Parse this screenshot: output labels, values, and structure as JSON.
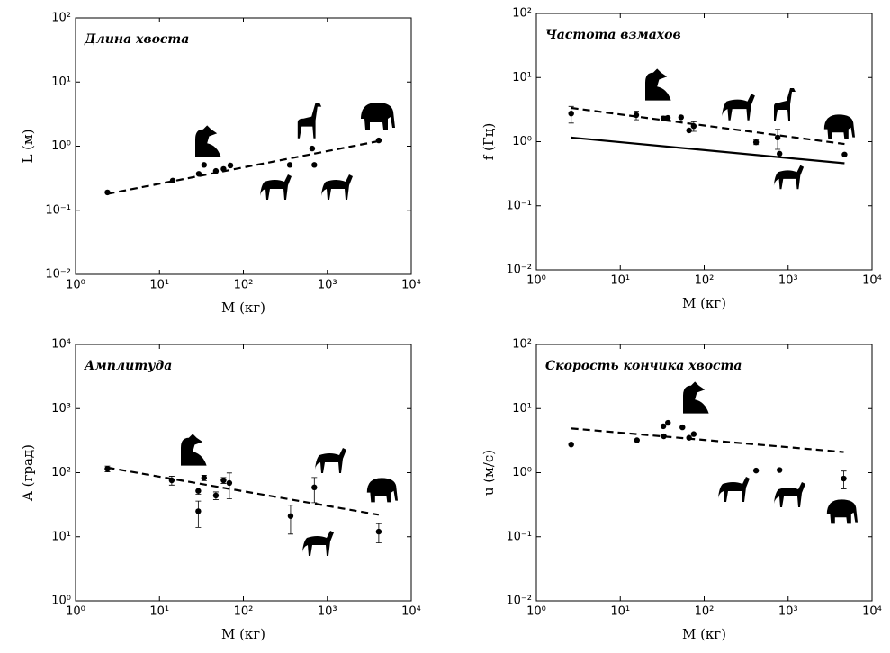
{
  "chart_data": [
    {
      "type": "scatter",
      "title": "Длина хвоста",
      "xlabel": "M (кг)",
      "ylabel": "L (м)",
      "log_x": true,
      "log_y": true,
      "xlim": [
        1,
        10000
      ],
      "ylim": [
        0.01,
        100
      ],
      "xticks": [
        {
          "value": 1,
          "label": "10⁰"
        },
        {
          "value": 10,
          "label": "10¹"
        },
        {
          "value": 100,
          "label": "10²"
        },
        {
          "value": 1000,
          "label": "10³"
        },
        {
          "value": 10000,
          "label": "10⁴"
        }
      ],
      "yticks": [
        {
          "value": 0.01,
          "label": "10⁻²"
        },
        {
          "value": 0.1,
          "label": "10⁻¹"
        },
        {
          "value": 1,
          "label": "10⁰"
        },
        {
          "value": 10,
          "label": "10¹"
        },
        {
          "value": 100,
          "label": "10²"
        }
      ],
      "series": [
        {
          "color": "#000000",
          "style": "points",
          "x": [
            2.4,
            14.4,
            29.4,
            34,
            47,
            58,
            70,
            357,
            660,
            700,
            4100
          ],
          "values": [
            0.19,
            0.29,
            0.37,
            0.51,
            0.41,
            0.44,
            0.5,
            0.51,
            0.92,
            0.51,
            1.23
          ]
        },
        {
          "color": "#000000",
          "style": "dashed",
          "x": [
            2.4,
            4100
          ],
          "values": [
            0.18,
            1.2
          ]
        }
      ]
    },
    {
      "type": "scatter",
      "title": "Частота взмахов",
      "xlabel": "M (кг)",
      "ylabel": "f (Гц)",
      "log_x": true,
      "log_y": true,
      "xlim": [
        1,
        10000
      ],
      "ylim": [
        0.01,
        100
      ],
      "xticks": [
        {
          "value": 1,
          "label": "10⁰"
        },
        {
          "value": 10,
          "label": "10¹"
        },
        {
          "value": 100,
          "label": "10²"
        },
        {
          "value": 1000,
          "label": "10³"
        },
        {
          "value": 10000,
          "label": "10⁴"
        }
      ],
      "yticks": [
        {
          "value": 0.01,
          "label": "10⁻²"
        },
        {
          "value": 0.1,
          "label": "10⁻¹"
        },
        {
          "value": 1,
          "label": "10⁰"
        },
        {
          "value": 10,
          "label": "10¹"
        },
        {
          "value": 100,
          "label": "10²"
        }
      ],
      "series": [
        {
          "color": "#000000",
          "style": "points",
          "x": [
            2.6,
            15.5,
            32.6,
            36.8,
            53,
            66,
            75,
            415,
            750,
            790,
            4700
          ],
          "values": [
            2.75,
            2.6,
            2.3,
            2.35,
            2.4,
            1.5,
            1.75,
            0.98,
            1.16,
            0.65,
            0.63
          ],
          "errors": [
            0.8,
            0.4,
            0.2,
            null,
            null,
            null,
            0.3,
            0.08,
            0.4,
            null,
            null
          ]
        },
        {
          "color": "#000000",
          "style": "dashed",
          "x": [
            2.6,
            4700
          ],
          "values": [
            3.36,
            0.92
          ]
        },
        {
          "color": "#000000",
          "style": "solid",
          "x": [
            2.6,
            4700
          ],
          "values": [
            1.16,
            0.46
          ]
        }
      ]
    },
    {
      "type": "scatter",
      "title": "Амплитуда",
      "xlabel": "M (кг)",
      "ylabel": "A (град)",
      "log_x": true,
      "log_y": true,
      "xlim": [
        1,
        10000
      ],
      "ylim": [
        1,
        10000
      ],
      "xticks": [
        {
          "value": 1,
          "label": "10⁰"
        },
        {
          "value": 10,
          "label": "10¹"
        },
        {
          "value": 100,
          "label": "10²"
        },
        {
          "value": 1000,
          "label": "10³"
        },
        {
          "value": 10000,
          "label": "10⁴"
        }
      ],
      "yticks": [
        {
          "value": 1,
          "label": "10⁰"
        },
        {
          "value": 10,
          "label": "10¹"
        },
        {
          "value": 100,
          "label": "10²"
        },
        {
          "value": 1000,
          "label": "10³"
        },
        {
          "value": 10000,
          "label": "10⁴"
        }
      ],
      "series": [
        {
          "color": "#000000",
          "style": "points",
          "x": [
            2.4,
            14,
            29,
            29,
            34,
            47,
            58,
            68,
            365,
            700,
            4100
          ],
          "values": [
            115,
            76,
            52,
            25,
            83,
            44,
            76,
            69,
            21,
            59,
            12
          ],
          "errors": [
            12,
            12,
            6,
            11,
            8,
            6,
            8,
            30,
            10,
            25,
            4
          ]
        },
        {
          "color": "#000000",
          "style": "dashed",
          "x": [
            2.4,
            4100
          ],
          "values": [
            120,
            22
          ]
        }
      ]
    },
    {
      "type": "scatter",
      "title": "Скорость кончика хвоста",
      "xlabel": "M (кг)",
      "ylabel": "u (м/с)",
      "log_x": true,
      "log_y": true,
      "xlim": [
        1,
        10000
      ],
      "ylim": [
        0.01,
        100
      ],
      "xticks": [
        {
          "value": 1,
          "label": "10⁰"
        },
        {
          "value": 10,
          "label": "10¹"
        },
        {
          "value": 100,
          "label": "10²"
        },
        {
          "value": 1000,
          "label": "10³"
        },
        {
          "value": 10000,
          "label": "10⁴"
        }
      ],
      "yticks": [
        {
          "value": 0.01,
          "label": "10⁻²"
        },
        {
          "value": 0.1,
          "label": "10⁻¹"
        },
        {
          "value": 1,
          "label": "10⁰"
        },
        {
          "value": 10,
          "label": "10¹"
        },
        {
          "value": 100,
          "label": "10²"
        }
      ],
      "series": [
        {
          "color": "#000000",
          "style": "points",
          "x": [
            2.6,
            15.8,
            32.6,
            37,
            33,
            55,
            66,
            75,
            415,
            790,
            4600
          ],
          "values": [
            2.75,
            3.2,
            5.3,
            6.0,
            3.7,
            5.1,
            3.5,
            4.0,
            1.08,
            1.1,
            0.81
          ],
          "errors": [
            null,
            null,
            null,
            null,
            null,
            null,
            null,
            null,
            null,
            null,
            0.25
          ]
        },
        {
          "color": "#000000",
          "style": "dashed",
          "x": [
            2.6,
            4600
          ],
          "values": [
            4.9,
            2.1
          ]
        }
      ]
    }
  ]
}
